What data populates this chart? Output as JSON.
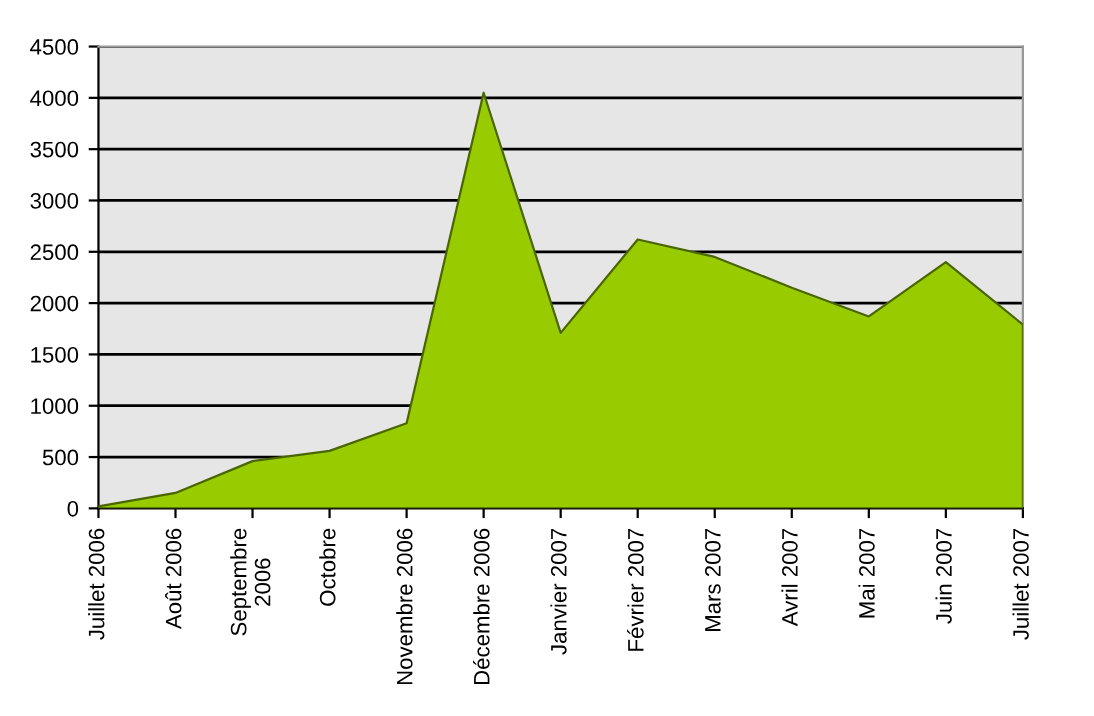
{
  "chart_data": {
    "type": "area",
    "categories": [
      "Juillet 2006",
      "Août 2006",
      "Septembre\n2006",
      "Octobre",
      "Novembre 2006",
      "Décembre 2006",
      "Janvier 2007",
      "Février 2007",
      "Mars 2007",
      "Avril 2007",
      "Mai 2007",
      "Juin 2007",
      "Juillet 2007"
    ],
    "series": [
      {
        "color": "#99cc00",
        "values": [
          20,
          150,
          460,
          560,
          830,
          4050,
          1710,
          2620,
          2450,
          2150,
          1870,
          2400,
          1790
        ]
      }
    ],
    "ylim": [
      0,
      4500
    ],
    "yticks": [
      0,
      500,
      1000,
      1500,
      2000,
      2500,
      3000,
      3500,
      4000,
      4500
    ],
    "grid": "y",
    "legend": false
  }
}
